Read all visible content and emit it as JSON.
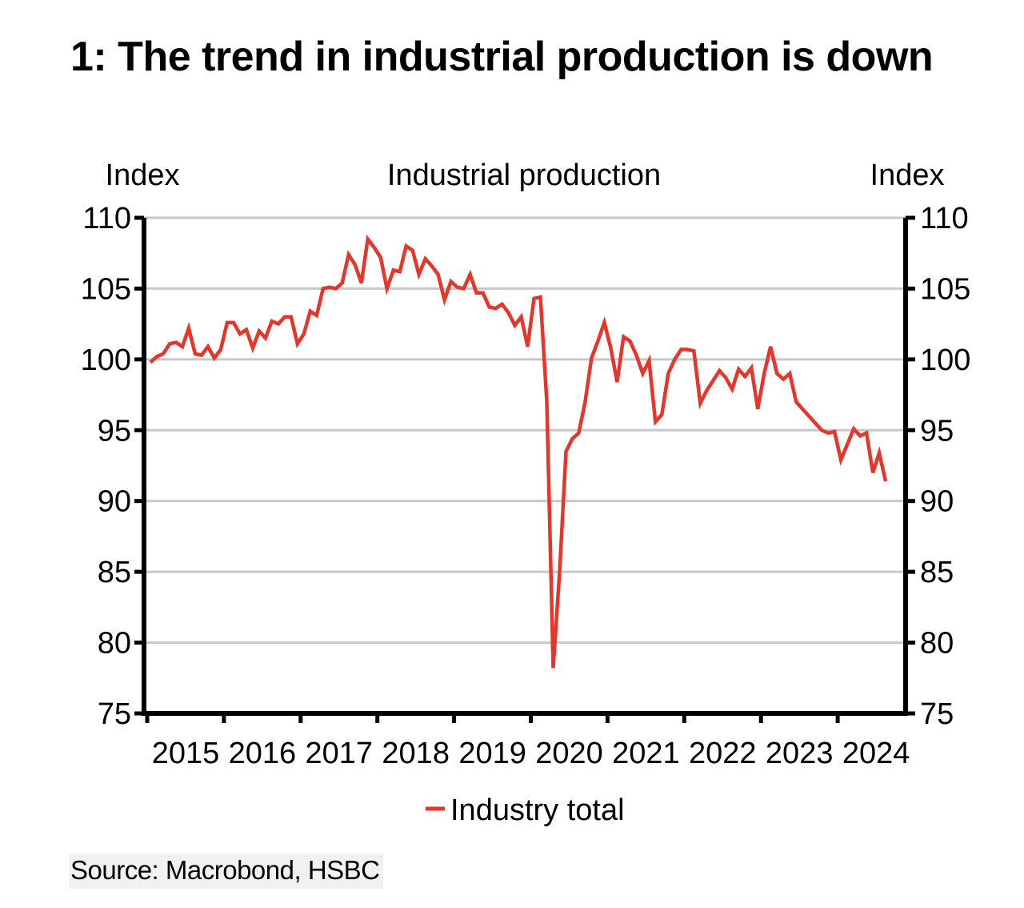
{
  "header": {
    "title": "1: The trend in industrial production is down"
  },
  "footer": {
    "source": "Source: Macrobond, HSBC"
  },
  "chart_data": {
    "type": "line",
    "title": "Industrial production",
    "ylabel_left": "Index",
    "ylabel_right": "Index",
    "xlabel": "",
    "ylim": [
      75,
      110
    ],
    "yticks": [
      75,
      80,
      85,
      90,
      95,
      100,
      105,
      110
    ],
    "ytick_labels": [
      "75",
      "80",
      "85",
      "90",
      "95",
      "100",
      "105",
      "110"
    ],
    "x_tick_labels": [
      "2015",
      "2016",
      "2017",
      "2018",
      "2019",
      "2020",
      "2021",
      "2022",
      "2023",
      "2024"
    ],
    "x_start": "2015-01",
    "x_frequency": "monthly",
    "xlim_years": [
      2015.0,
      2024.92
    ],
    "grid": "horizontal",
    "legend_position": "bottom-center",
    "colors": {
      "series": "#e8352a",
      "grid": "#c8c8c8",
      "axis": "#000000"
    },
    "series": [
      {
        "name": "Industry total",
        "values": [
          99.8,
          100.2,
          100.4,
          101.1,
          101.2,
          100.9,
          102.2,
          100.4,
          100.3,
          100.9,
          100.1,
          100.7,
          102.6,
          102.6,
          101.8,
          102.1,
          100.8,
          102.0,
          101.5,
          102.7,
          102.5,
          103.0,
          103.0,
          101.1,
          101.8,
          103.4,
          103.1,
          105.0,
          105.1,
          105.0,
          105.4,
          107.4,
          106.7,
          105.4,
          108.5,
          107.9,
          107.2,
          105.0,
          106.3,
          106.2,
          108.0,
          107.7,
          106.0,
          107.1,
          106.6,
          106.0,
          104.2,
          105.5,
          105.1,
          105.0,
          106.0,
          104.7,
          104.7,
          103.7,
          103.6,
          103.9,
          103.3,
          102.4,
          103.0,
          100.9,
          104.3,
          104.4,
          97.0,
          78.2,
          85.0,
          93.5,
          94.4,
          94.8,
          97.0,
          100.1,
          101.3,
          102.6,
          100.8,
          98.4,
          101.6,
          101.3,
          100.3,
          99.0,
          99.9,
          95.6,
          96.1,
          99.0,
          100.0,
          100.7,
          100.7,
          100.6,
          96.9,
          97.8,
          98.5,
          99.2,
          98.7,
          97.9,
          99.3,
          98.8,
          99.4,
          96.5,
          99.0,
          100.9,
          99.0,
          98.6,
          99.0,
          97.0,
          96.5,
          96.0,
          95.5,
          95.0,
          94.8,
          94.9,
          92.9,
          94.0,
          95.1,
          94.6,
          94.8,
          92.0,
          93.4,
          91.4
        ]
      }
    ],
    "legend": [
      {
        "label": "Industry total",
        "color": "#e8352a"
      }
    ]
  }
}
